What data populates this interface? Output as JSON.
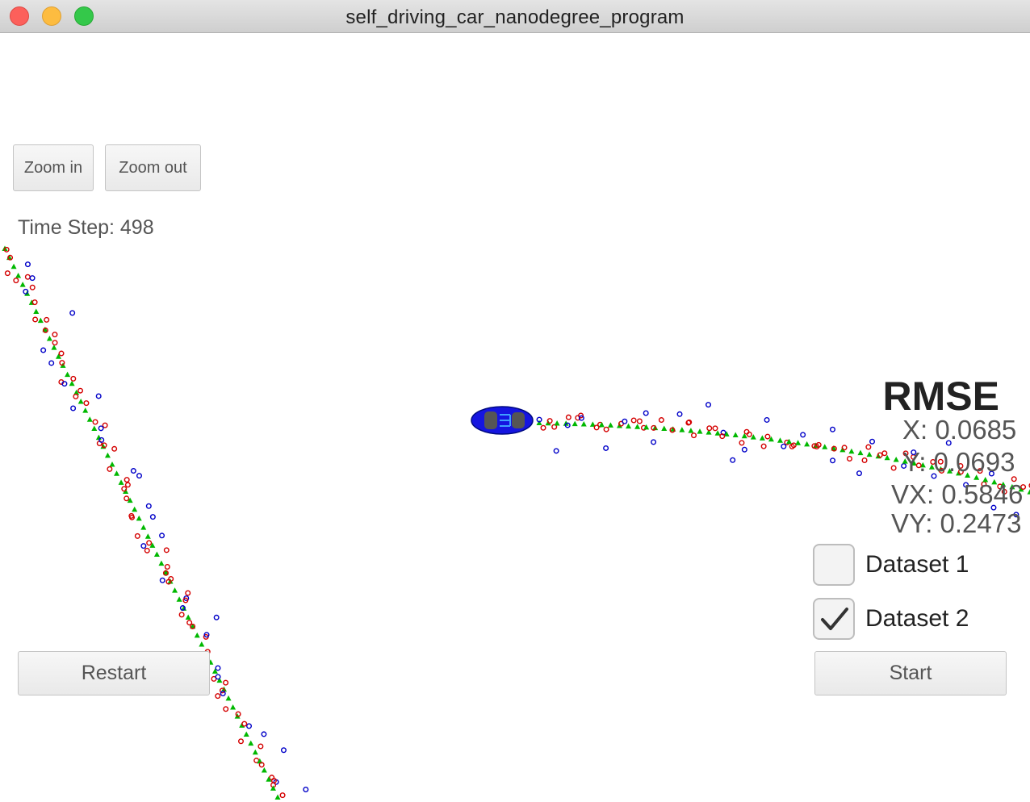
{
  "window": {
    "title": "self_driving_car_nanodegree_program"
  },
  "controls": {
    "zoom_in": "Zoom in",
    "zoom_out": "Zoom out",
    "restart": "Restart",
    "start": "Start"
  },
  "status": {
    "time_step": "Time Step: 498"
  },
  "rmse": {
    "title": "RMSE",
    "x": "X: 0.0685",
    "y": "Y: 0.0693",
    "vx": "VX: 0.5846",
    "vy": "VY: 0.2473"
  },
  "datasets": [
    {
      "label": "Dataset 1",
      "checked": false
    },
    {
      "label": "Dataset 2",
      "checked": true
    }
  ],
  "colors": {
    "lidar": "#d40000",
    "radar": "#0000c8",
    "estimate": "#00b800",
    "car": "#1010e0"
  },
  "icons": {
    "car": "car-icon",
    "check": "checkmark-icon"
  }
}
